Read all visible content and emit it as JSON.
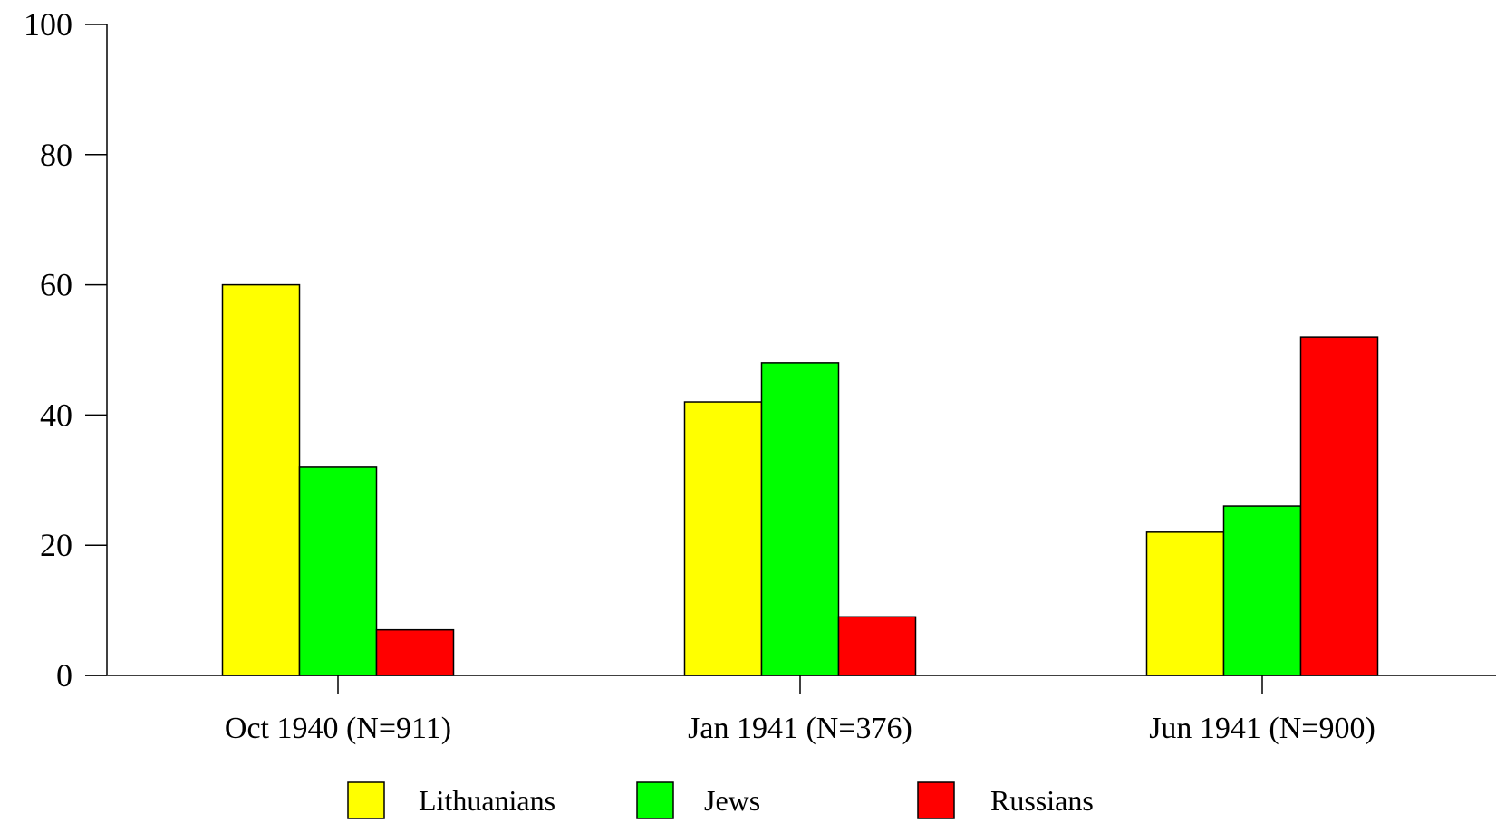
{
  "chart_data": {
    "type": "bar",
    "title": "",
    "xlabel": "",
    "ylabel": "",
    "ylim": [
      0,
      100
    ],
    "yticks": [
      "0",
      "20",
      "40",
      "60",
      "80",
      "100"
    ],
    "categories": [
      "Oct 1940 (N=911)",
      "Jan 1941 (N=376)",
      "Jun 1941 (N=900)"
    ],
    "series": [
      {
        "name": "Lithuanians",
        "color": "#ffff00",
        "values": [
          60,
          42,
          22
        ]
      },
      {
        "name": "Jews",
        "color": "#00ff00",
        "values": [
          32,
          48,
          26
        ]
      },
      {
        "name": "Russians",
        "color": "#ff0000",
        "values": [
          7,
          9,
          52
        ]
      }
    ],
    "grid": false,
    "legend_position": "bottom"
  }
}
